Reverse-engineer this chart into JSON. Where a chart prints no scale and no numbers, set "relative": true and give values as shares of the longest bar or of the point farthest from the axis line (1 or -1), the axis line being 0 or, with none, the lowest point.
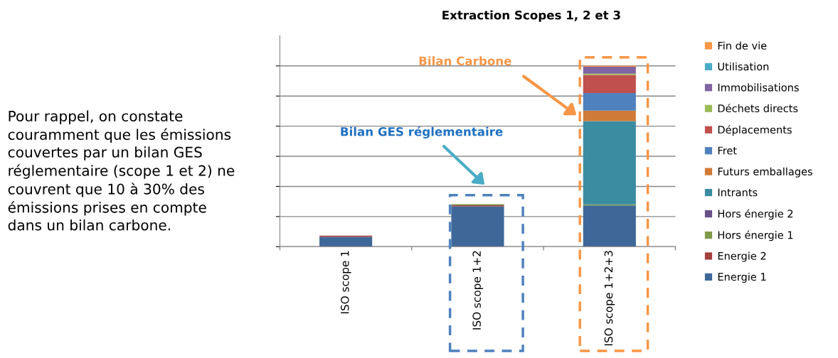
{
  "chart_data": {
    "type": "bar",
    "stacked": true,
    "relative": true,
    "title": "Extraction Scopes 1, 2 et 3",
    "categories": [
      "ISO scope 1",
      "ISO scope 1+2",
      "ISO scope 1+2+3"
    ],
    "series": [
      {
        "name": "Energie 1",
        "color": "#3f6899",
        "values": [
          0.054,
          0.223,
          0.228
        ]
      },
      {
        "name": "Energie 2",
        "color": "#a33f3c",
        "values": [
          0.007,
          0.006,
          0
        ]
      },
      {
        "name": "Hors énergie 1",
        "color": "#7f9a48",
        "values": [
          0,
          0.006,
          0.006
        ]
      },
      {
        "name": "Hors énergie 2",
        "color": "#69518a",
        "values": [
          0,
          0,
          0
        ]
      },
      {
        "name": "Intrants",
        "color": "#3a8ca1",
        "values": [
          0,
          0,
          0.46
        ]
      },
      {
        "name": "Futurs emballages",
        "color": "#cf7b37",
        "values": [
          0,
          0,
          0.058
        ]
      },
      {
        "name": "Fret",
        "color": "#4e81bd",
        "values": [
          0,
          0,
          0.097
        ]
      },
      {
        "name": "Déplacements",
        "color": "#c0504d",
        "values": [
          0,
          0,
          0.1
        ]
      },
      {
        "name": "Déchets directs",
        "color": "#9bbb59",
        "values": [
          0,
          0,
          0.007
        ]
      },
      {
        "name": "Immobilisations",
        "color": "#8064a2",
        "values": [
          0,
          0,
          0.038
        ]
      },
      {
        "name": "Utilisation",
        "color": "#4aacc6",
        "values": [
          0,
          0,
          0
        ]
      },
      {
        "name": "Fin de vie",
        "color": "#f79646",
        "values": [
          0,
          0,
          0.006
        ]
      }
    ],
    "grid": "y",
    "legend": "right",
    "annotations": [
      "Pour rappel, on constate\ncouramment que les émissions\ncouvertes par un bilan GES\nréglementaire (scope 1 et 2) ne\ncouvrent que 10 à 30% des\némissions prises en compte\ndans un bilan carbone.",
      "Bilan GES réglementaire",
      "Bilan Carbone"
    ]
  }
}
